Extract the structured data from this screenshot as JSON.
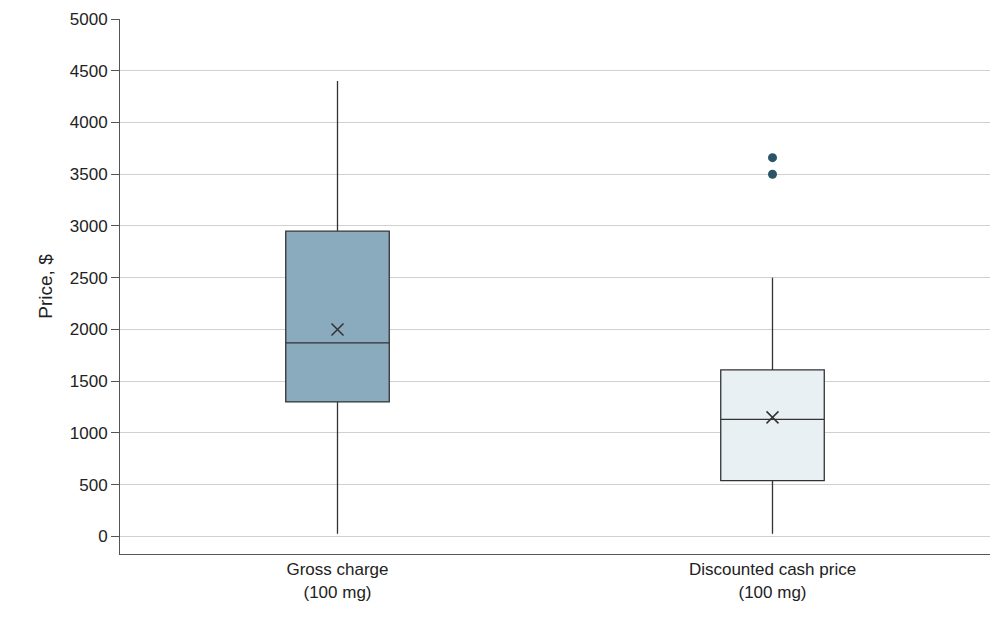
{
  "chart_data": {
    "type": "box",
    "ylabel": "Price, $",
    "categories": [
      "Gross charge\n(100 mg)",
      "Discounted cash price\n(100 mg)"
    ],
    "lowerfence": [
      25,
      25
    ],
    "q1": [
      1300,
      540
    ],
    "median": [
      1870,
      1130
    ],
    "q3": [
      2950,
      1610
    ],
    "upperfence": [
      4400,
      2500
    ],
    "mean": [
      2000,
      1150
    ],
    "outliers": [
      [],
      [
        3500,
        3660
      ]
    ],
    "colors": [
      "#8aabbd",
      "#e9f0f4"
    ],
    "marker": "x",
    "ylim": [
      -170,
      5000
    ],
    "yticks": [
      0,
      500,
      1000,
      1500,
      2000,
      2500,
      3000,
      3500,
      4000,
      4500,
      5000
    ],
    "grid": true
  }
}
